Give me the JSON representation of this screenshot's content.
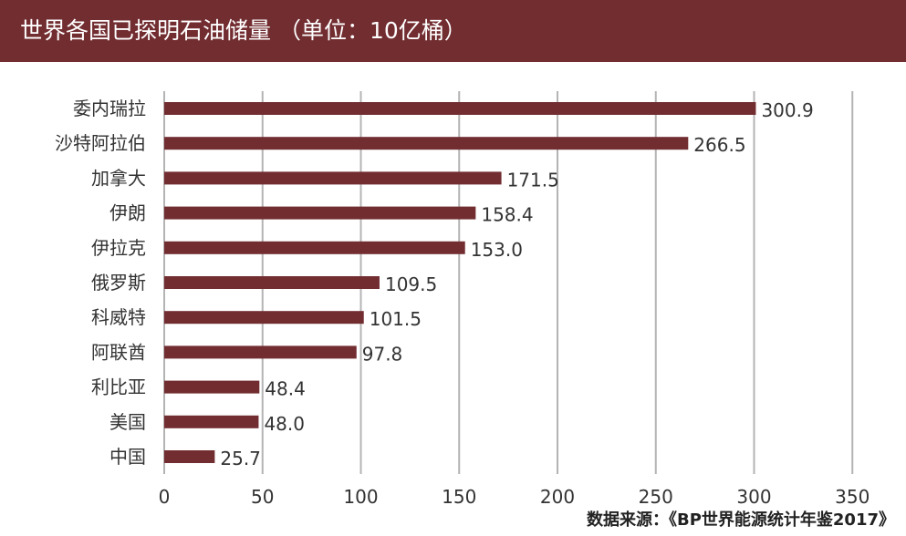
{
  "title": "世界各国已探明石油储量 （单位：10亿桶）",
  "source": "数据来源：《BP世界能源统计年鉴2017》",
  "colors": {
    "header_bg": "#722d31",
    "bar": "#722d31",
    "grid": "#b4b4b4"
  },
  "chart_data": {
    "type": "bar",
    "orientation": "horizontal",
    "title": "世界各国已探明石油储量 （单位：10亿桶）",
    "categories": [
      "委内瑞拉",
      "沙特阿拉伯",
      "加拿大",
      "伊朗",
      "伊拉克",
      "俄罗斯",
      "科威特",
      "阿联酋",
      "利比亚",
      "美国",
      "中国"
    ],
    "values": [
      300.9,
      266.5,
      171.5,
      158.4,
      153.0,
      109.5,
      101.5,
      97.8,
      48.4,
      48.0,
      25.7
    ],
    "value_labels": [
      "300.9",
      "266.5",
      "171.5",
      "158.4",
      "153.0",
      "109.5",
      "101.5",
      "97.8",
      "48.4",
      "48.0",
      "25.7"
    ],
    "xlim": [
      0,
      350
    ],
    "x_ticks": [
      "0",
      "50",
      "100",
      "150",
      "200",
      "250",
      "300",
      "350"
    ],
    "grid": "vertical",
    "legend": "none",
    "xlabel": "",
    "ylabel": ""
  }
}
